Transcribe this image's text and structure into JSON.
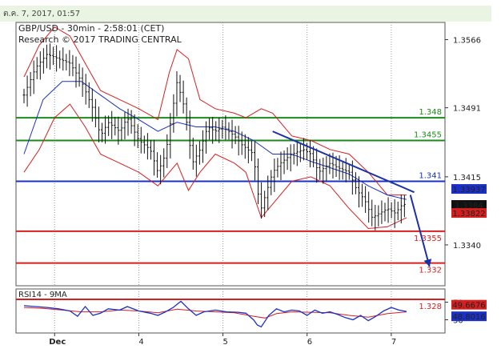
{
  "header": {
    "timestamp": "ต.ค. 7, 2017, 01:57"
  },
  "chart_data": {
    "type": "candlestick",
    "symbol_line": "GBP/USD - 30min - 2:58:01 (CET)",
    "research_line": "Research © 2017 TRADING CENTRAL",
    "price_axis": {
      "ylim": [
        1.3295,
        1.3585
      ],
      "ticks": [
        "1.3566",
        "1.3491",
        "1.3415",
        "1.3340"
      ]
    },
    "x_labels": [
      "Dec",
      "4",
      "5",
      "6",
      "7"
    ],
    "levels": [
      {
        "value": 1.348,
        "label": "1.348",
        "color": "#1a8a1a"
      },
      {
        "value": 1.3455,
        "label": "1.3455",
        "color": "#1a8a1a"
      },
      {
        "value": 1.341,
        "label": "1.341",
        "color": "#1a30c8"
      },
      {
        "value": 1.3355,
        "label": "1.3355",
        "color": "#d62020"
      },
      {
        "value": 1.332,
        "label": "1.332",
        "color": "#d62020"
      },
      {
        "value": 1.328,
        "label": "1.328",
        "color": "#d62020"
      }
    ],
    "price_tags": [
      {
        "value": 1.33937,
        "label": "1.33937",
        "bg": "#1a30c8"
      },
      {
        "value": 1.3384,
        "label": "1.3384",
        "bg": "#111111"
      },
      {
        "value": 1.33822,
        "label": "1.33822",
        "bg": "#d62020"
      }
    ],
    "close_path": [
      [
        0,
        1.3505
      ],
      [
        3,
        1.3535
      ],
      [
        6,
        1.355
      ],
      [
        9,
        1.3545
      ],
      [
        12,
        1.354
      ],
      [
        15,
        1.352
      ],
      [
        18,
        1.349
      ],
      [
        20,
        1.346
      ],
      [
        22,
        1.3475
      ],
      [
        25,
        1.3465
      ],
      [
        27,
        1.348
      ],
      [
        30,
        1.3455
      ],
      [
        33,
        1.3445
      ],
      [
        35,
        1.342
      ],
      [
        37,
        1.344
      ],
      [
        40,
        1.352
      ],
      [
        42,
        1.349
      ],
      [
        44,
        1.343
      ],
      [
        46,
        1.3445
      ],
      [
        48,
        1.347
      ],
      [
        50,
        1.3465
      ],
      [
        52,
        1.347
      ],
      [
        55,
        1.346
      ],
      [
        57,
        1.345
      ],
      [
        60,
        1.344
      ],
      [
        61,
        1.34
      ],
      [
        62,
        1.338
      ],
      [
        65,
        1.342
      ],
      [
        67,
        1.343
      ],
      [
        70,
        1.344
      ],
      [
        73,
        1.3445
      ],
      [
        75,
        1.344
      ],
      [
        77,
        1.342
      ],
      [
        80,
        1.343
      ],
      [
        82,
        1.3425
      ],
      [
        85,
        1.342
      ],
      [
        87,
        1.34
      ],
      [
        89,
        1.339
      ],
      [
        91,
        1.337
      ],
      [
        93,
        1.3375
      ],
      [
        95,
        1.338
      ],
      [
        97,
        1.3375
      ],
      [
        99,
        1.3385
      ],
      [
        100,
        1.3384
      ]
    ],
    "ema_path": [
      [
        0,
        1.344
      ],
      [
        5,
        1.35
      ],
      [
        10,
        1.352
      ],
      [
        15,
        1.352
      ],
      [
        20,
        1.3505
      ],
      [
        25,
        1.349
      ],
      [
        30,
        1.3478
      ],
      [
        35,
        1.3465
      ],
      [
        40,
        1.3475
      ],
      [
        45,
        1.347
      ],
      [
        50,
        1.347
      ],
      [
        55,
        1.3465
      ],
      [
        60,
        1.3455
      ],
      [
        65,
        1.344
      ],
      [
        70,
        1.344
      ],
      [
        75,
        1.3432
      ],
      [
        80,
        1.3425
      ],
      [
        85,
        1.3418
      ],
      [
        90,
        1.3405
      ],
      [
        95,
        1.3395
      ],
      [
        100,
        1.339
      ]
    ],
    "bb_upper": [
      [
        0,
        1.3525
      ],
      [
        4,
        1.356
      ],
      [
        8,
        1.358
      ],
      [
        12,
        1.357
      ],
      [
        16,
        1.354
      ],
      [
        20,
        1.351
      ],
      [
        25,
        1.35
      ],
      [
        30,
        1.349
      ],
      [
        35,
        1.3478
      ],
      [
        38,
        1.353
      ],
      [
        40,
        1.3555
      ],
      [
        43,
        1.3545
      ],
      [
        46,
        1.35
      ],
      [
        50,
        1.349
      ],
      [
        55,
        1.3485
      ],
      [
        58,
        1.348
      ],
      [
        62,
        1.349
      ],
      [
        65,
        1.3485
      ],
      [
        70,
        1.346
      ],
      [
        75,
        1.3455
      ],
      [
        80,
        1.3445
      ],
      [
        85,
        1.344
      ],
      [
        90,
        1.342
      ],
      [
        95,
        1.3395
      ],
      [
        100,
        1.3395
      ]
    ],
    "bb_lower": [
      [
        0,
        1.342
      ],
      [
        4,
        1.3445
      ],
      [
        8,
        1.348
      ],
      [
        12,
        1.3495
      ],
      [
        16,
        1.347
      ],
      [
        20,
        1.344
      ],
      [
        25,
        1.343
      ],
      [
        30,
        1.342
      ],
      [
        35,
        1.3405
      ],
      [
        38,
        1.342
      ],
      [
        40,
        1.343
      ],
      [
        43,
        1.34
      ],
      [
        46,
        1.342
      ],
      [
        50,
        1.344
      ],
      [
        55,
        1.343
      ],
      [
        58,
        1.342
      ],
      [
        62,
        1.337
      ],
      [
        65,
        1.3385
      ],
      [
        70,
        1.341
      ],
      [
        75,
        1.3415
      ],
      [
        80,
        1.3405
      ],
      [
        85,
        1.338
      ],
      [
        90,
        1.3358
      ],
      [
        95,
        1.336
      ],
      [
        100,
        1.337
      ]
    ],
    "trendline": {
      "from": [
        65,
        1.3465
      ],
      "to": [
        102,
        1.3398
      ]
    },
    "arrow": {
      "from": [
        101,
        1.3395
      ],
      "to": [
        106,
        1.3316
      ]
    },
    "rsi": {
      "label": "RSI14 - 9MA",
      "ylim": [
        0,
        100
      ],
      "ticks": [
        "70",
        "30"
      ],
      "tags": [
        {
          "value": 49.6676,
          "label": "49.6676",
          "bg": "#d62020"
        },
        {
          "value": 48.8016,
          "label": "48.8016",
          "bg": "#1a30c8"
        }
      ],
      "rsi_path": [
        [
          0,
          62
        ],
        [
          3,
          60
        ],
        [
          6,
          58
        ],
        [
          9,
          55
        ],
        [
          12,
          50
        ],
        [
          14,
          38
        ],
        [
          16,
          60
        ],
        [
          18,
          40
        ],
        [
          20,
          45
        ],
        [
          22,
          55
        ],
        [
          25,
          52
        ],
        [
          27,
          60
        ],
        [
          30,
          50
        ],
        [
          33,
          45
        ],
        [
          35,
          40
        ],
        [
          37,
          48
        ],
        [
          39,
          58
        ],
        [
          41,
          72
        ],
        [
          43,
          55
        ],
        [
          45,
          40
        ],
        [
          47,
          48
        ],
        [
          50,
          52
        ],
        [
          53,
          48
        ],
        [
          56,
          47
        ],
        [
          58,
          45
        ],
        [
          60,
          30
        ],
        [
          61,
          18
        ],
        [
          62,
          14
        ],
        [
          64,
          40
        ],
        [
          66,
          55
        ],
        [
          68,
          48
        ],
        [
          70,
          52
        ],
        [
          72,
          50
        ],
        [
          74,
          40
        ],
        [
          76,
          52
        ],
        [
          78,
          45
        ],
        [
          80,
          48
        ],
        [
          82,
          42
        ],
        [
          84,
          35
        ],
        [
          86,
          30
        ],
        [
          88,
          40
        ],
        [
          90,
          28
        ],
        [
          92,
          38
        ],
        [
          94,
          50
        ],
        [
          96,
          58
        ],
        [
          98,
          52
        ],
        [
          100,
          49
        ]
      ],
      "ma_path": [
        [
          0,
          58
        ],
        [
          5,
          56
        ],
        [
          10,
          52
        ],
        [
          15,
          48
        ],
        [
          20,
          48
        ],
        [
          25,
          52
        ],
        [
          30,
          50
        ],
        [
          35,
          46
        ],
        [
          40,
          54
        ],
        [
          45,
          50
        ],
        [
          50,
          48
        ],
        [
          55,
          46
        ],
        [
          60,
          38
        ],
        [
          63,
          34
        ],
        [
          66,
          44
        ],
        [
          70,
          48
        ],
        [
          75,
          47
        ],
        [
          80,
          46
        ],
        [
          85,
          40
        ],
        [
          90,
          36
        ],
        [
          95,
          44
        ],
        [
          100,
          48
        ]
      ]
    }
  }
}
